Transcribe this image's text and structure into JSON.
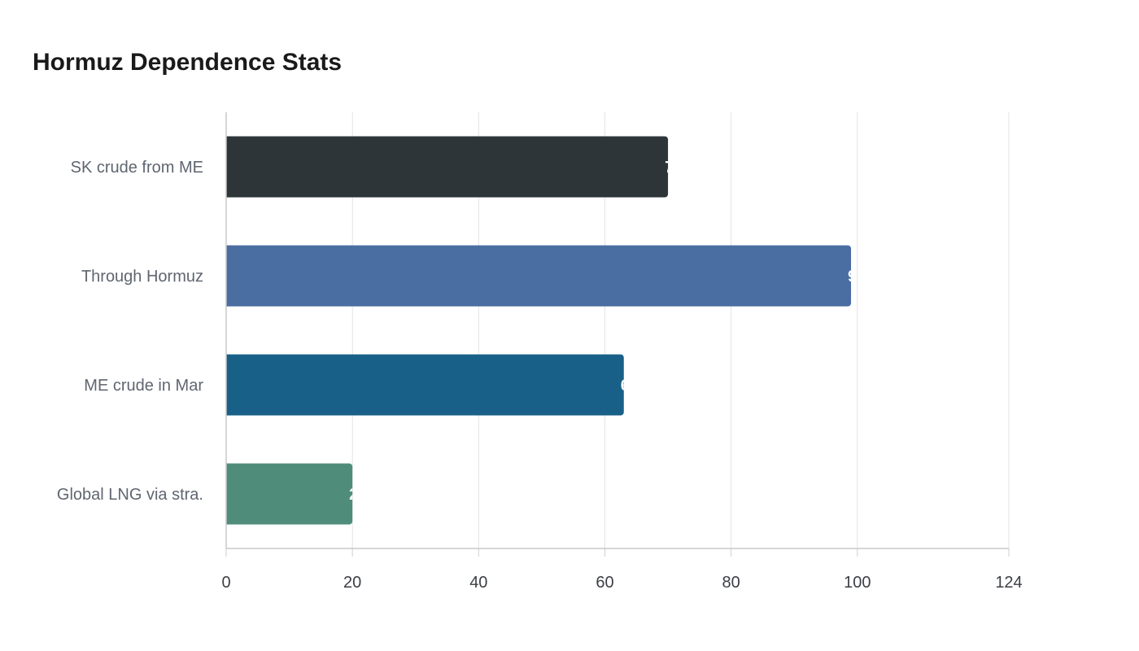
{
  "chart_data": {
    "type": "bar",
    "orientation": "horizontal",
    "title": "Hormuz Dependence Stats",
    "categories": [
      "SK crude from ME",
      "Through Hormuz",
      "ME crude in Mar",
      "Global LNG via stra."
    ],
    "values": [
      70,
      99,
      63,
      20
    ],
    "xticks": [
      0,
      20,
      40,
      60,
      80,
      100,
      124
    ],
    "xlim": [
      0,
      124
    ],
    "grid": true,
    "data_labels": true,
    "colors": [
      "#2d3538",
      "#4a6da2",
      "#186088",
      "#4f8d7a"
    ]
  }
}
